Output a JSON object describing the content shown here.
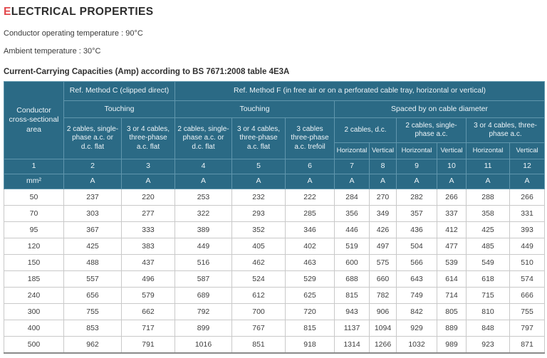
{
  "header": {
    "title_accent": "E",
    "title_rest": "LECTRICAL PROPERTIES",
    "conductor_temp": "Conductor operating temperature : 90°C",
    "ambient_temp": "Ambient temperature : 30°C",
    "caption": "Current-Carrying Capacities (Amp) according to BS 7671:2008 table 4E3A"
  },
  "colors": {
    "accent_red": "#e2484c",
    "header_teal": "#2b6a85",
    "header_border": "#6096ad"
  },
  "table": {
    "corner_header": "Conductor cross-sectional area",
    "method_c_header": "Ref. Method C (clipped direct)",
    "method_f_header": "Ref. Method F (in free air or on a perforated cable tray, horizontal or vertical)",
    "touching_c_header": "Touching",
    "touching_f_header": "Touching",
    "spaced_header": "Spaced by on cable diameter",
    "arrangement_headers": [
      "2 cables, single-phase a.c. or d.c. flat",
      "3 or 4 cables, three-phase a.c. flat",
      "2 cables, single-phase a.c. or d.c. flat",
      "3 or 4 cables, three-phase a.c. flat",
      "3 cables three-phase a.c. trefoil"
    ],
    "spaced_group_headers": [
      "2 cables, d.c.",
      "2 cables, single-phase a.c.",
      "3 or 4 cables, three-phase a.c."
    ],
    "orientation_headers": [
      "Horizontal",
      "Vertical",
      "Horizontal",
      "Vertical",
      "Horizontal",
      "Vertical"
    ],
    "column_numbers": [
      "1",
      "2",
      "3",
      "4",
      "5",
      "6",
      "7",
      "8",
      "9",
      "10",
      "11",
      "12"
    ],
    "unit_row": [
      "mm²",
      "A",
      "A",
      "A",
      "A",
      "A",
      "A",
      "A",
      "A",
      "A",
      "A",
      "A"
    ],
    "rows": [
      {
        "size": "50",
        "values": [
          "237",
          "220",
          "253",
          "232",
          "222",
          "284",
          "270",
          "282",
          "266",
          "288",
          "266"
        ]
      },
      {
        "size": "70",
        "values": [
          "303",
          "277",
          "322",
          "293",
          "285",
          "356",
          "349",
          "357",
          "337",
          "358",
          "331"
        ]
      },
      {
        "size": "95",
        "values": [
          "367",
          "333",
          "389",
          "352",
          "346",
          "446",
          "426",
          "436",
          "412",
          "425",
          "393"
        ]
      },
      {
        "size": "120",
        "values": [
          "425",
          "383",
          "449",
          "405",
          "402",
          "519",
          "497",
          "504",
          "477",
          "485",
          "449"
        ]
      },
      {
        "size": "150",
        "values": [
          "488",
          "437",
          "516",
          "462",
          "463",
          "600",
          "575",
          "566",
          "539",
          "549",
          "510"
        ]
      },
      {
        "size": "185",
        "values": [
          "557",
          "496",
          "587",
          "524",
          "529",
          "688",
          "660",
          "643",
          "614",
          "618",
          "574"
        ]
      },
      {
        "size": "240",
        "values": [
          "656",
          "579",
          "689",
          "612",
          "625",
          "815",
          "782",
          "749",
          "714",
          "715",
          "666"
        ]
      },
      {
        "size": "300",
        "values": [
          "755",
          "662",
          "792",
          "700",
          "720",
          "943",
          "906",
          "842",
          "805",
          "810",
          "755"
        ]
      },
      {
        "size": "400",
        "values": [
          "853",
          "717",
          "899",
          "767",
          "815",
          "1137",
          "1094",
          "929",
          "889",
          "848",
          "797"
        ]
      },
      {
        "size": "500",
        "values": [
          "962",
          "791",
          "1016",
          "851",
          "918",
          "1314",
          "1266",
          "1032",
          "989",
          "923",
          "871"
        ]
      }
    ]
  }
}
